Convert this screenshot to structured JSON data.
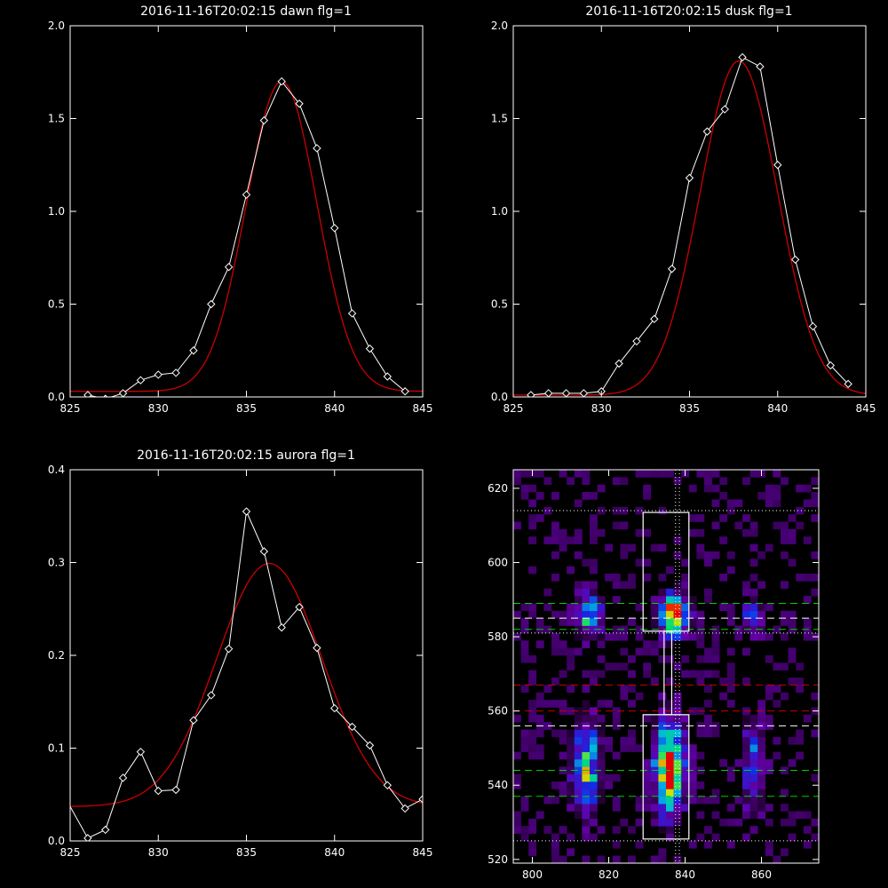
{
  "colors": {
    "background": "#000000",
    "axes": "#ffffff",
    "observed": "#ffffff",
    "fit": "#cc0000",
    "guide_green": "#00cc00",
    "guide_red": "#cc0000",
    "guide_white": "#ffffff"
  },
  "chart_data": [
    {
      "id": "dawn",
      "type": "line",
      "title": "2016-11-16T20:02:15 dawn flg=1",
      "xlim": [
        825,
        845
      ],
      "ylim": [
        0,
        2
      ],
      "xticks": [
        825,
        830,
        835,
        840,
        845
      ],
      "yticks": [
        0.0,
        0.5,
        1.0,
        1.5,
        2.0
      ],
      "ytick_labels": [
        "0.0",
        "0.5",
        "1.0",
        "1.5",
        "2.0"
      ],
      "series": [
        {
          "role": "observed",
          "marker": "diamond",
          "x": [
            826,
            827,
            828,
            829,
            830,
            831,
            832,
            833,
            834,
            835,
            836,
            837,
            838,
            839,
            840,
            841,
            842,
            843,
            844
          ],
          "y": [
            0.01,
            -0.01,
            0.02,
            0.09,
            0.12,
            0.13,
            0.25,
            0.5,
            0.7,
            1.09,
            1.49,
            1.7,
            1.58,
            1.34,
            0.91,
            0.45,
            0.26,
            0.11,
            0.03
          ]
        },
        {
          "role": "fit",
          "model": "gaussian",
          "amplitude": 1.67,
          "center": 837.0,
          "sigma": 2.0,
          "baseline": 0.03
        }
      ]
    },
    {
      "id": "dusk",
      "type": "line",
      "title": "2016-11-16T20:02:15 dusk flg=1",
      "xlim": [
        825,
        845
      ],
      "ylim": [
        0,
        2
      ],
      "xticks": [
        825,
        830,
        835,
        840,
        845
      ],
      "yticks": [
        0.0,
        0.5,
        1.0,
        1.5,
        2.0
      ],
      "ytick_labels": [
        "0.0",
        "0.5",
        "1.0",
        "1.5",
        "2.0"
      ],
      "series": [
        {
          "role": "observed",
          "marker": "diamond",
          "x": [
            826,
            827,
            828,
            829,
            830,
            831,
            832,
            833,
            834,
            835,
            836,
            837,
            838,
            839,
            840,
            841,
            842,
            843,
            844
          ],
          "y": [
            0.01,
            0.02,
            0.02,
            0.02,
            0.03,
            0.18,
            0.3,
            0.42,
            0.69,
            1.18,
            1.43,
            1.55,
            1.83,
            1.78,
            1.25,
            0.74,
            0.38,
            0.17,
            0.07
          ]
        },
        {
          "role": "fit",
          "model": "gaussian",
          "amplitude": 1.8,
          "center": 837.8,
          "sigma": 2.2,
          "baseline": 0.01
        }
      ]
    },
    {
      "id": "aurora",
      "type": "line",
      "title": "2016-11-16T20:02:15 aurora flg=1",
      "xlim": [
        825,
        845
      ],
      "ylim": [
        0,
        0.4
      ],
      "xticks": [
        825,
        830,
        835,
        840,
        845
      ],
      "yticks": [
        0.0,
        0.1,
        0.2,
        0.3,
        0.4
      ],
      "ytick_labels": [
        "0.0",
        "0.1",
        "0.2",
        "0.3",
        "0.4"
      ],
      "series": [
        {
          "role": "observed",
          "marker": "diamond",
          "x": [
            825,
            826,
            827,
            828,
            829,
            830,
            831,
            832,
            833,
            834,
            835,
            836,
            837,
            838,
            839,
            840,
            841,
            842,
            843,
            844,
            845
          ],
          "y": [
            0.037,
            0.003,
            0.012,
            0.068,
            0.096,
            0.054,
            0.055,
            0.13,
            0.157,
            0.207,
            0.355,
            0.312,
            0.23,
            0.252,
            0.208,
            0.143,
            0.123,
            0.103,
            0.06,
            0.035,
            0.045
          ],
          "marker_skip": [
            0
          ]
        },
        {
          "role": "fit",
          "model": "gaussian",
          "amplitude": 0.262,
          "center": 836.3,
          "sigma": 3.0,
          "baseline": 0.037
        }
      ]
    },
    {
      "id": "image",
      "type": "heatmap",
      "title": "",
      "xlim": [
        795,
        875
      ],
      "ylim": [
        519,
        625
      ],
      "xticks": [
        800,
        820,
        840,
        860
      ],
      "yticks": [
        520,
        540,
        560,
        580,
        600,
        620
      ],
      "colormap": "rainbow",
      "emission_blobs": [
        {
          "x": 815,
          "y": 586,
          "sx": 2.3,
          "sy": 3.5,
          "amp": 0.55
        },
        {
          "x": 837,
          "y": 586,
          "sx": 2.5,
          "sy": 3.5,
          "amp": 1.0
        },
        {
          "x": 858,
          "y": 585,
          "sx": 2.0,
          "sy": 3.0,
          "amp": 0.35
        },
        {
          "x": 814,
          "y": 545,
          "sx": 2.3,
          "sy": 8.0,
          "amp": 0.6
        },
        {
          "x": 836,
          "y": 545,
          "sx": 2.5,
          "sy": 8.0,
          "amp": 1.0
        },
        {
          "x": 858,
          "y": 545,
          "sx": 2.0,
          "sy": 8.0,
          "amp": 0.35
        }
      ],
      "boxes": [
        {
          "x0": 829,
          "x1": 841,
          "y0": 581.5,
          "y1": 613.5
        },
        {
          "x0": 829,
          "x1": 841,
          "y0": 525.5,
          "y1": 559
        },
        {
          "x0": 834.5,
          "x1": 836.5,
          "y0": 559,
          "y1": 581.5
        }
      ],
      "vertical_lines": [
        {
          "x": 837.5,
          "style": "dotted",
          "color": "guide_white"
        },
        {
          "x": 838.5,
          "style": "dotted",
          "color": "guide_white"
        }
      ],
      "horizontal_lines": [
        {
          "y": 614,
          "style": "dotted",
          "color": "guide_white"
        },
        {
          "y": 589,
          "style": "dashed",
          "color": "guide_green"
        },
        {
          "y": 585,
          "style": "dashed",
          "color": "guide_white"
        },
        {
          "y": 582,
          "style": "dashed",
          "color": "guide_green"
        },
        {
          "y": 581,
          "style": "dotted",
          "color": "guide_white"
        },
        {
          "y": 567,
          "style": "dashed",
          "color": "guide_red"
        },
        {
          "y": 560,
          "style": "dashed",
          "color": "guide_red"
        },
        {
          "y": 556,
          "style": "dashed",
          "color": "guide_white"
        },
        {
          "y": 544,
          "style": "dashed",
          "color": "guide_green"
        },
        {
          "y": 537,
          "style": "dashed",
          "color": "guide_green"
        },
        {
          "y": 525,
          "style": "dotted",
          "color": "guide_white"
        }
      ]
    }
  ]
}
